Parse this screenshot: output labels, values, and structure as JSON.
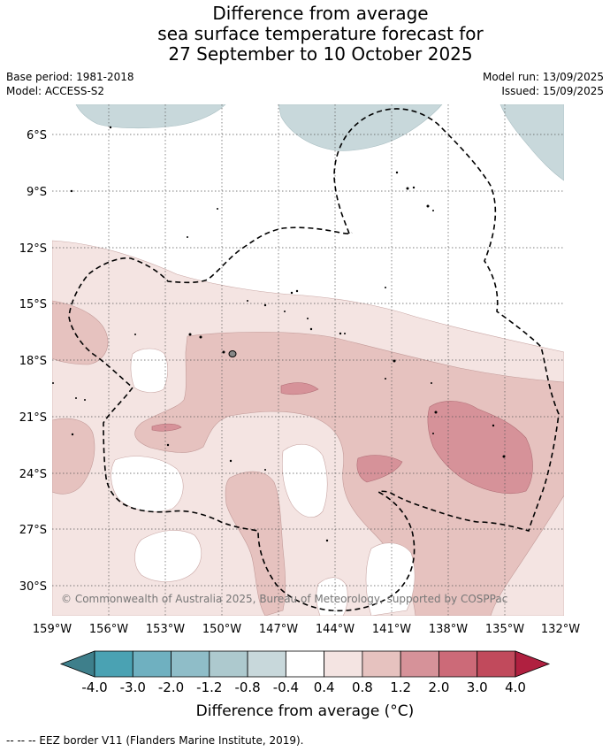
{
  "title": {
    "line1": "Difference from average",
    "line2": "sea surface temperature forecast for",
    "line3": "27 September to 10 October 2025"
  },
  "meta": {
    "base_period": "Base period: 1981-2018",
    "model": "Model: ACCESS-S2",
    "model_run": "Model run: 13/09/2025",
    "issued": "Issued: 15/09/2025"
  },
  "map": {
    "lat_labels": [
      "6°S",
      "9°S",
      "12°S",
      "15°S",
      "18°S",
      "21°S",
      "24°S",
      "27°S",
      "30°S"
    ],
    "lon_labels": [
      "159°W",
      "156°W",
      "153°W",
      "150°W",
      "147°W",
      "144°W",
      "141°W",
      "138°W",
      "135°W",
      "132°W"
    ],
    "copyright": "© Commonwealth of Australia 2025, Bureau of Meteorology, supported by COSPPac"
  },
  "colorbar": {
    "ticks": [
      "-4.0",
      "-3.0",
      "-2.0",
      "-1.2",
      "-0.8",
      "-0.4",
      "0.4",
      "0.8",
      "1.2",
      "2.0",
      "3.0",
      "4.0"
    ],
    "colors": [
      "#3e7f8b",
      "#4aa2b3",
      "#6fb0c0",
      "#8fbdc8",
      "#adc9ce",
      "#c8d8db",
      "#ffffff",
      "#f4e4e2",
      "#e6c2bf",
      "#d69299",
      "#cc6a78",
      "#c14a5c",
      "#b02040"
    ],
    "title": "Difference from average (°C)"
  },
  "footer": "--  --  -- EEZ border V11 (Flanders Marine Institute, 2019)."
}
